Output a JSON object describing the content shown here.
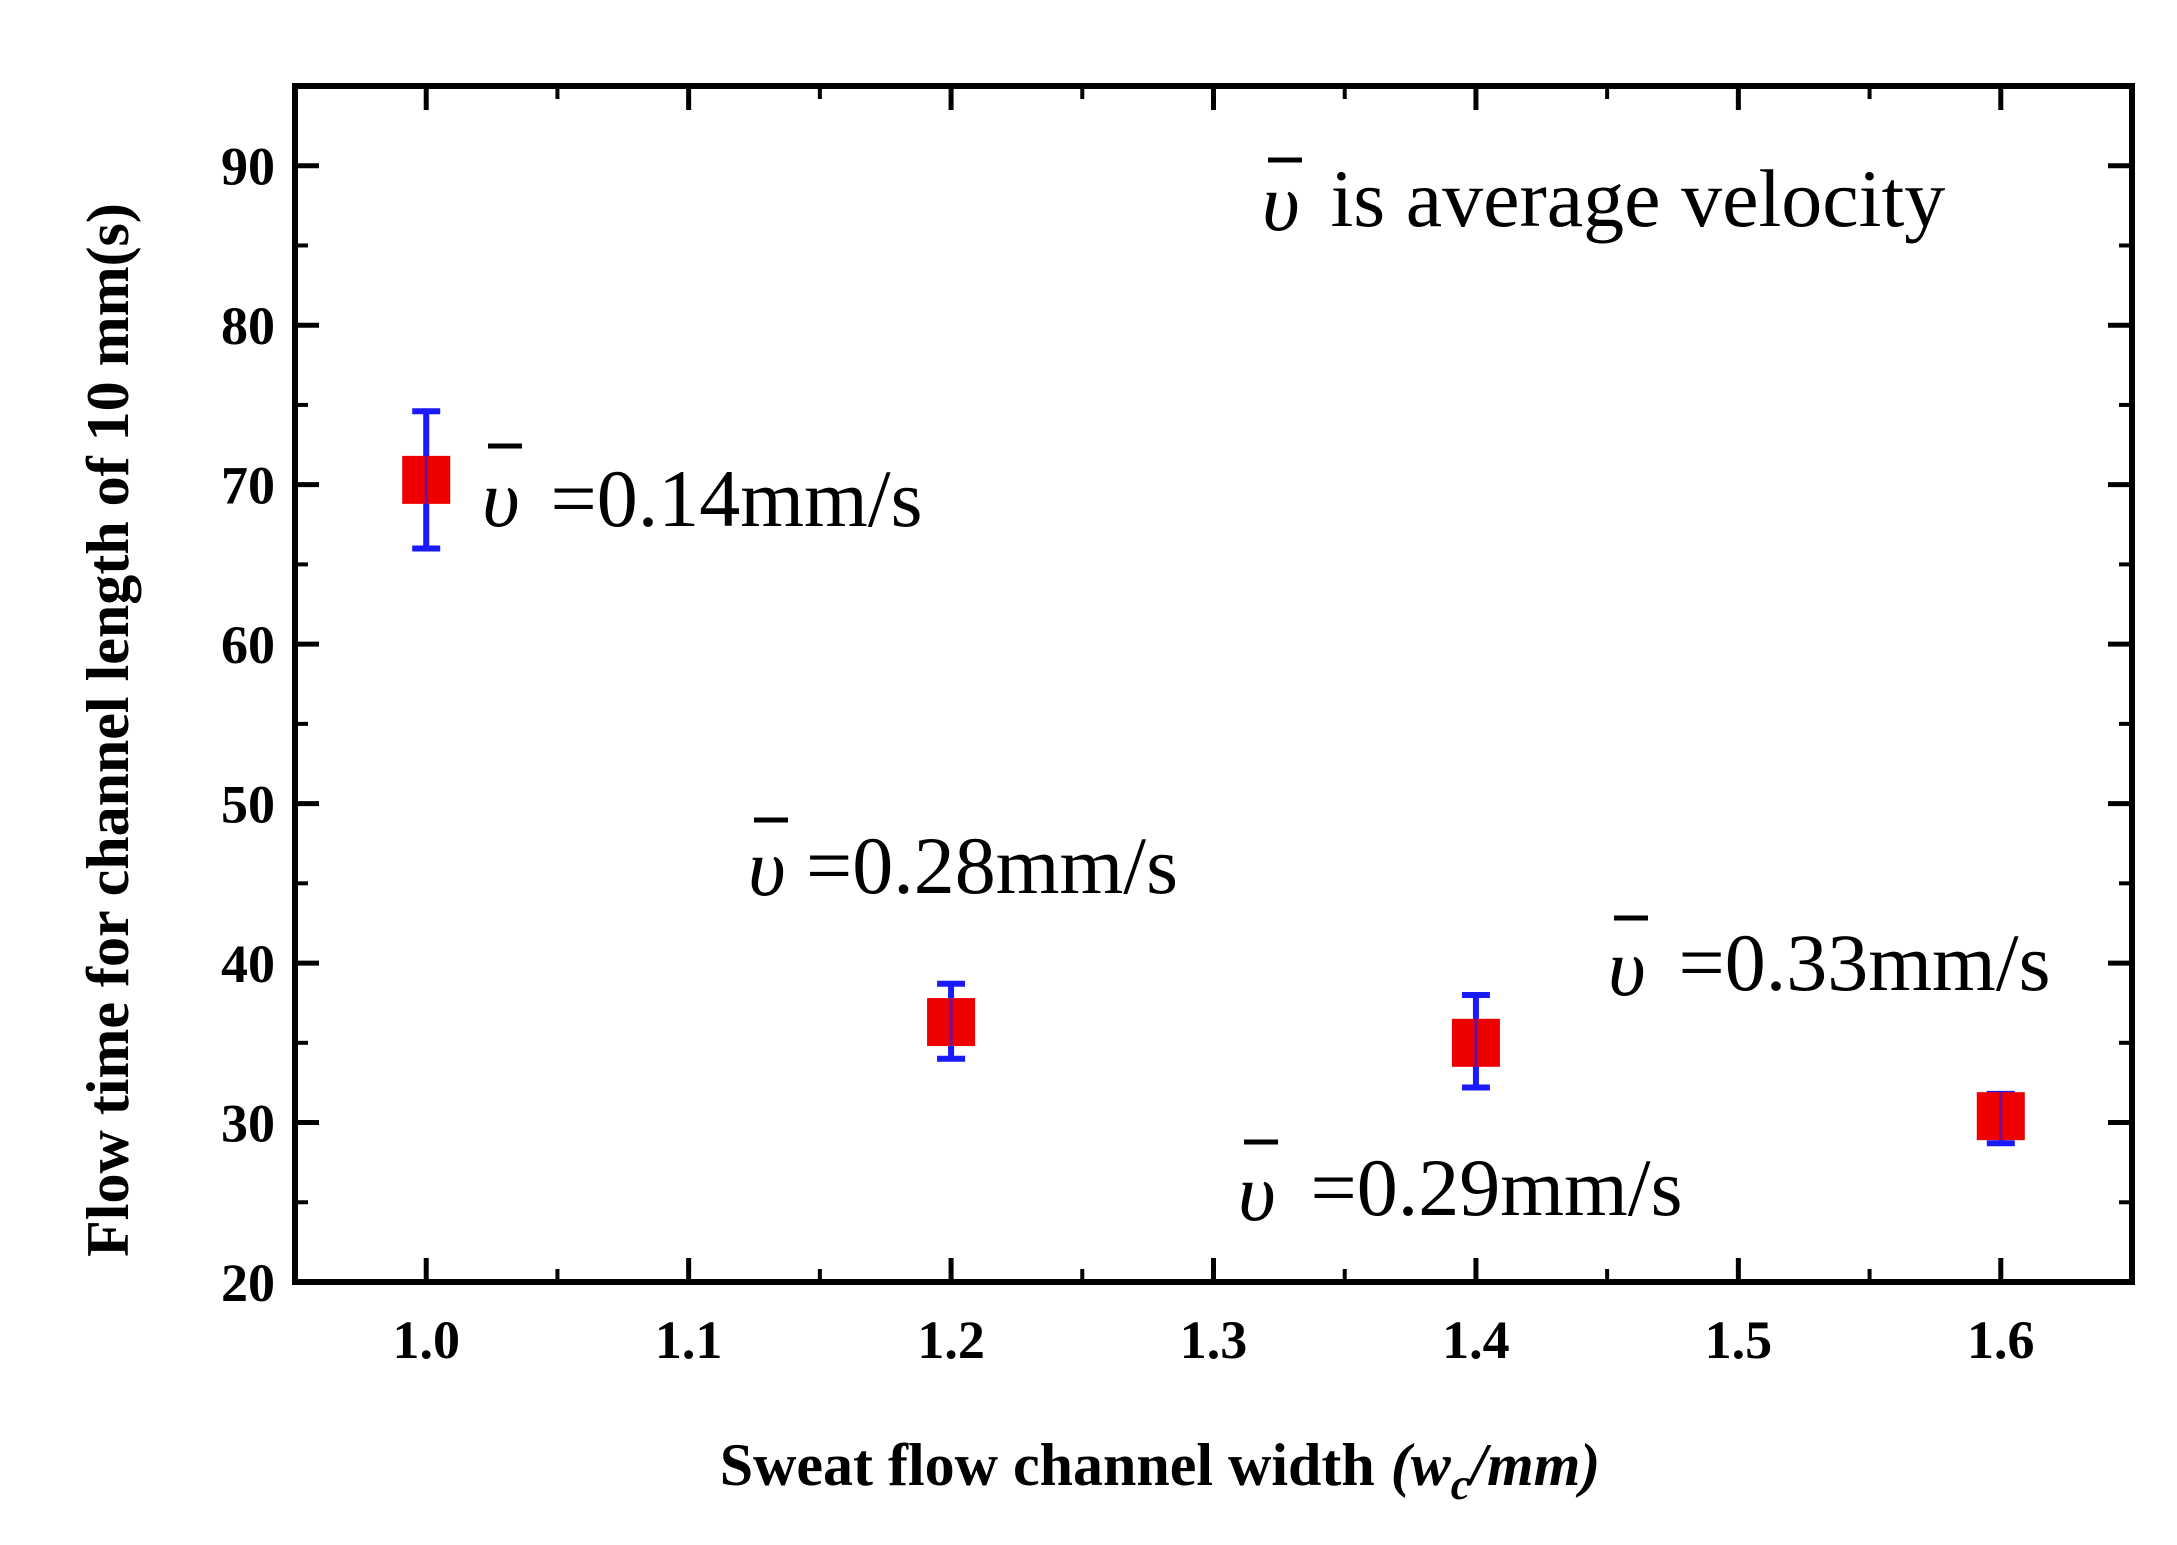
{
  "chart_data": {
    "type": "scatter",
    "title": "",
    "xlabel": "Sweat flow channel width",
    "xlabel_unit": "(w",
    "xlabel_sub": "c",
    "xlabel_tail": "/mm)",
    "ylabel": "Flow time for channel length of 10 mm(s)",
    "xlim": [
      0.95,
      1.65
    ],
    "ylim": [
      20,
      95
    ],
    "xticks": [
      "1.0",
      "1.1",
      "1.2",
      "1.3",
      "1.4",
      "1.5",
      "1.6"
    ],
    "yticks": [
      "20",
      "30",
      "40",
      "50",
      "60",
      "70",
      "80",
      "90"
    ],
    "series": [
      {
        "name": "Flow time",
        "marker_color": "#ee0000",
        "errorbar_color": "#1a1aff",
        "x": [
          1.0,
          1.2,
          1.4,
          1.6
        ],
        "y": [
          70.3,
          36.3,
          35.0,
          30.4
        ],
        "err_low": [
          66.0,
          34.0,
          32.2,
          28.7
        ],
        "err_high": [
          74.6,
          38.7,
          38.0,
          31.8
        ]
      }
    ],
    "annotations": [
      {
        "symbol": "υ",
        "text": " is average velocity"
      },
      {
        "symbol": "υ",
        "text": " =0.14mm/s"
      },
      {
        "symbol": "υ",
        "text": "=0.28mm/s"
      },
      {
        "symbol": "υ",
        "text": " =0.33mm/s"
      },
      {
        "symbol": "υ",
        "text": " =0.29mm/s"
      }
    ]
  }
}
